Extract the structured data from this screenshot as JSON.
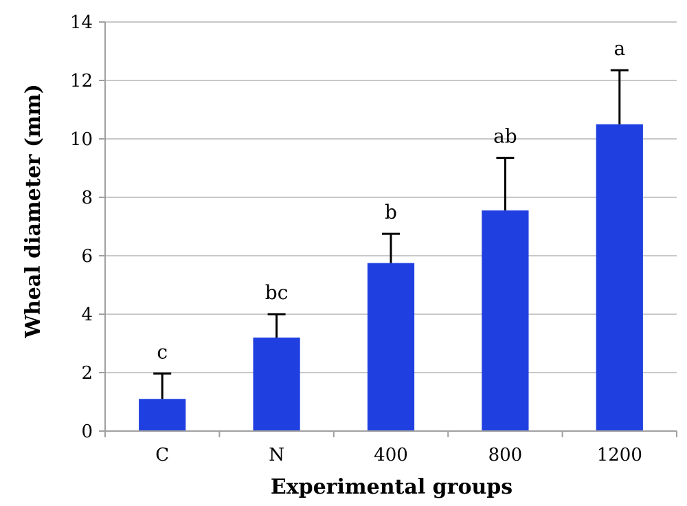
{
  "chart_data": {
    "type": "bar",
    "title": "",
    "xlabel": "Experimental groups",
    "ylabel": "Wheal diameter (mm)",
    "ylim": [
      0,
      14
    ],
    "yticks": [
      0,
      2,
      4,
      6,
      8,
      10,
      12,
      14
    ],
    "grid": true,
    "categories": [
      "C",
      "N",
      "400",
      "800",
      "1200"
    ],
    "values": [
      1.1,
      3.2,
      5.75,
      7.55,
      10.5
    ],
    "error_upper": [
      1.97,
      4.0,
      6.75,
      9.35,
      12.35
    ],
    "annotations": [
      "c",
      "bc",
      "b",
      "ab",
      "a"
    ],
    "bar_color": "#1f3fe0",
    "grid_color": "#c8c8c8",
    "axis_color": "#a0a0a0"
  }
}
